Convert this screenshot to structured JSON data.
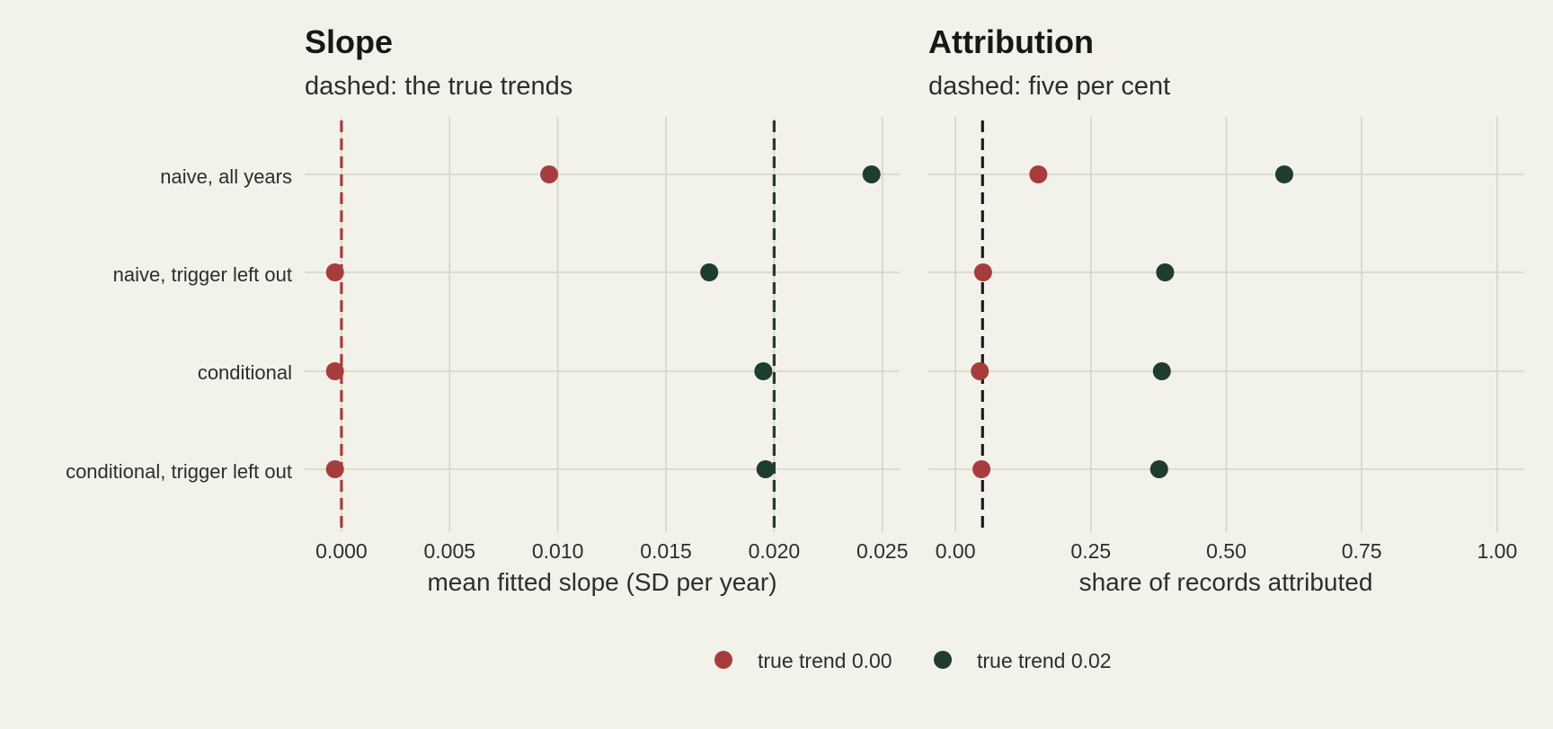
{
  "chart_data": [
    {
      "type": "scatter",
      "title": "Slope",
      "subtitle": "dashed: the true trends",
      "xlabel": "mean fitted slope (SD per year)",
      "ylabel": "",
      "xlim": [
        -0.0017,
        0.0258
      ],
      "x_ticks": [
        0,
        0.005,
        0.01,
        0.015,
        0.02,
        0.025
      ],
      "x_tick_labels": [
        "0.000",
        "0.005",
        "0.010",
        "0.015",
        "0.020",
        "0.025"
      ],
      "categories": [
        "naive, all years",
        "naive, trigger left out",
        "conditional",
        "conditional, trigger left out"
      ],
      "series": [
        {
          "name": "true trend 0.00",
          "color": "#a63d3d",
          "values": [
            0.0096,
            -0.0003,
            -0.0003,
            -0.0003
          ]
        },
        {
          "name": "true trend 0.02",
          "color": "#1f3d2e",
          "values": [
            0.0245,
            0.017,
            0.0195,
            0.0196
          ]
        }
      ],
      "reference_lines": [
        {
          "value": 0.0,
          "color": "#a63d3d",
          "style": "dashed"
        },
        {
          "value": 0.02,
          "color": "#1f3d2e",
          "style": "dashed"
        }
      ],
      "grid": true
    },
    {
      "type": "scatter",
      "title": "Attribution",
      "subtitle": "dashed: five per cent",
      "xlabel": "share of records attributed",
      "ylabel": "",
      "xlim": [
        -0.05,
        1.05
      ],
      "x_ticks": [
        0,
        0.25,
        0.5,
        0.75,
        1.0
      ],
      "x_tick_labels": [
        "0.00",
        "0.25",
        "0.50",
        "0.75",
        "1.00"
      ],
      "categories": [
        "naive, all years",
        "naive, trigger left out",
        "conditional",
        "conditional, trigger left out"
      ],
      "series": [
        {
          "name": "true trend 0.00",
          "color": "#a63d3d",
          "values": [
            0.153,
            0.051,
            0.045,
            0.048
          ]
        },
        {
          "name": "true trend 0.02",
          "color": "#1f3d2e",
          "values": [
            0.607,
            0.387,
            0.381,
            0.376
          ]
        }
      ],
      "reference_lines": [
        {
          "value": 0.05,
          "color": "#1a1a1a",
          "style": "dashed"
        }
      ],
      "grid": true
    }
  ],
  "legend": {
    "placement": "bottom",
    "entries": [
      {
        "label": "true trend 0.00",
        "color": "#a63d3d"
      },
      {
        "label": "true trend 0.02",
        "color": "#1f3d2e"
      }
    ]
  }
}
